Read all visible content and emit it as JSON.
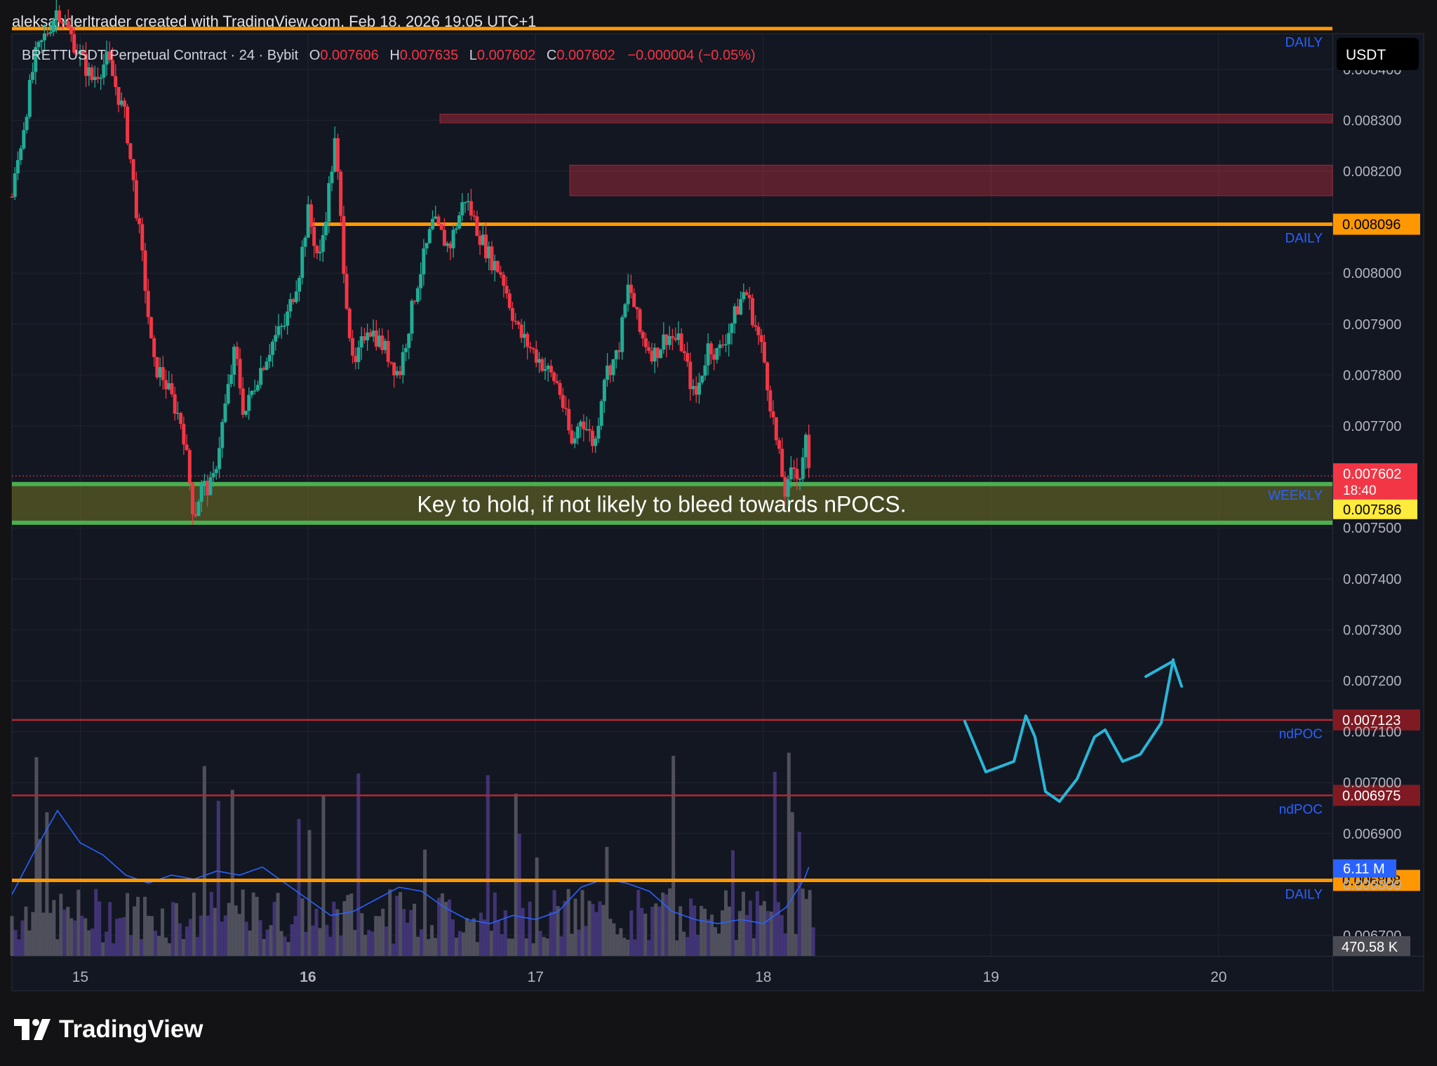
{
  "header": {
    "credit": "aleksanderltrader created with TradingView.com, Feb 18, 2026 19:05 UTC+1"
  },
  "branding": {
    "logo_text": "TradingView"
  },
  "currency_button": {
    "label": "USDT"
  },
  "legend": {
    "symbol": "BRETTUSDT Perpetual Contract · 24 · Bybit",
    "o_label": "O",
    "o_value": "0.007606",
    "h_label": "H",
    "h_value": "0.007635",
    "l_label": "L",
    "l_value": "0.007602",
    "c_label": "C",
    "c_value": "0.007602",
    "change": "−0.000004 (−0.05%)"
  },
  "chart_data": {
    "type": "candlestick",
    "x_ticks": [
      "15",
      "16",
      "17",
      "18",
      "19",
      "20"
    ],
    "x_tick_positions": [
      14.5,
      15.5,
      16.5,
      17.5,
      18.5,
      19.5
    ],
    "x_domain": [
      14.2,
      20.0
    ],
    "y_ticks": [
      "0.008400",
      "0.008300",
      "0.008200",
      "0.008000",
      "0.007900",
      "0.007800",
      "0.007700",
      "0.007500",
      "0.007400",
      "0.007300",
      "0.007200",
      "0.007100",
      "0.007000",
      "0.006900",
      "0.006800",
      "0.006700"
    ],
    "y_range": [
      0.00666,
      0.00847
    ],
    "colors": {
      "up": "#22ab94",
      "down": "#f23645",
      "grid": "#22252e",
      "background": "#131722"
    },
    "price_path": [
      [
        14.2,
        0.00815
      ],
      [
        14.3,
        0.00842
      ],
      [
        14.4,
        0.00852
      ],
      [
        14.55,
        0.00838
      ],
      [
        14.62,
        0.00842
      ],
      [
        14.7,
        0.0083
      ],
      [
        14.78,
        0.008
      ],
      [
        14.82,
        0.00782
      ],
      [
        14.86,
        0.0078
      ],
      [
        14.95,
        0.0077
      ],
      [
        15.0,
        0.00752
      ],
      [
        15.03,
        0.00758
      ],
      [
        15.08,
        0.00758
      ],
      [
        15.13,
        0.00772
      ],
      [
        15.18,
        0.00785
      ],
      [
        15.22,
        0.00772
      ],
      [
        15.28,
        0.0078
      ],
      [
        15.35,
        0.00787
      ],
      [
        15.4,
        0.0079
      ],
      [
        15.46,
        0.008
      ],
      [
        15.5,
        0.00812
      ],
      [
        15.55,
        0.00802
      ],
      [
        15.62,
        0.00826
      ],
      [
        15.66,
        0.008
      ],
      [
        15.7,
        0.0078
      ],
      [
        15.76,
        0.0079
      ],
      [
        15.84,
        0.00785
      ],
      [
        15.9,
        0.0078
      ],
      [
        15.98,
        0.00798
      ],
      [
        16.05,
        0.0081
      ],
      [
        16.12,
        0.00805
      ],
      [
        16.19,
        0.00815
      ],
      [
        16.25,
        0.00808
      ],
      [
        16.3,
        0.00803
      ],
      [
        16.35,
        0.008
      ],
      [
        16.4,
        0.00792
      ],
      [
        16.43,
        0.00788
      ],
      [
        16.5,
        0.00784
      ],
      [
        16.6,
        0.00778
      ],
      [
        16.66,
        0.00766
      ],
      [
        16.7,
        0.00772
      ],
      [
        16.76,
        0.00766
      ],
      [
        16.8,
        0.0078
      ],
      [
        16.86,
        0.00784
      ],
      [
        16.91,
        0.00798
      ],
      [
        16.96,
        0.00788
      ],
      [
        17.02,
        0.00784
      ],
      [
        17.08,
        0.00788
      ],
      [
        17.14,
        0.00786
      ],
      [
        17.2,
        0.00775
      ],
      [
        17.26,
        0.00786
      ],
      [
        17.3,
        0.00784
      ],
      [
        17.36,
        0.0079
      ],
      [
        17.42,
        0.00797
      ],
      [
        17.5,
        0.00784
      ],
      [
        17.56,
        0.00766
      ],
      [
        17.6,
        0.00756
      ],
      [
        17.63,
        0.00762
      ],
      [
        17.67,
        0.0076
      ],
      [
        17.68,
        0.00771
      ],
      [
        17.7,
        0.0076
      ]
    ],
    "volume": {
      "last_label": "6.11 M",
      "secondary_label": "470.58 K",
      "ma_path": [
        [
          14.2,
          0.76
        ],
        [
          14.3,
          1.3
        ],
        [
          14.4,
          1.8
        ],
        [
          14.5,
          1.4
        ],
        [
          14.6,
          1.25
        ],
        [
          14.7,
          1.0
        ],
        [
          14.8,
          0.9
        ],
        [
          14.9,
          1.0
        ],
        [
          15.0,
          0.95
        ],
        [
          15.1,
          1.05
        ],
        [
          15.2,
          1.0
        ],
        [
          15.3,
          1.1
        ],
        [
          15.4,
          0.9
        ],
        [
          15.5,
          0.7
        ],
        [
          15.6,
          0.5
        ],
        [
          15.7,
          0.55
        ],
        [
          15.8,
          0.7
        ],
        [
          15.9,
          0.85
        ],
        [
          16.0,
          0.8
        ],
        [
          16.1,
          0.6
        ],
        [
          16.2,
          0.45
        ],
        [
          16.3,
          0.4
        ],
        [
          16.4,
          0.5
        ],
        [
          16.5,
          0.45
        ],
        [
          16.6,
          0.55
        ],
        [
          16.7,
          0.85
        ],
        [
          16.8,
          0.95
        ],
        [
          16.9,
          0.9
        ],
        [
          17.0,
          0.8
        ],
        [
          17.1,
          0.55
        ],
        [
          17.2,
          0.45
        ],
        [
          17.3,
          0.4
        ],
        [
          17.4,
          0.45
        ],
        [
          17.5,
          0.4
        ],
        [
          17.6,
          0.6
        ],
        [
          17.68,
          0.95
        ],
        [
          17.7,
          1.1
        ]
      ]
    }
  },
  "levels": [
    {
      "price": 0.008096,
      "label": "DAILY",
      "badge": "0.008096",
      "color": "#ff9800",
      "x_start": 15.52
    },
    {
      "price": 0.00848,
      "label": "DAILY",
      "badge": "",
      "color": "#ff9800",
      "x_start": 14.2
    },
    {
      "price": 0.006808,
      "label": "DAILY",
      "badge": "0.006808",
      "color": "#ff9800",
      "x_start": 14.2
    },
    {
      "price": 0.007123,
      "label": "ndPOC",
      "badge": "0.007123",
      "color": "#b22833",
      "x_start": 14.2
    },
    {
      "price": 0.006975,
      "label": "ndPOC",
      "badge": "0.006975",
      "color": "#b22833",
      "x_start": 14.2
    }
  ],
  "zones": [
    {
      "top": 0.008312,
      "bottom": 0.008295,
      "x_start": 16.08
    },
    {
      "top": 0.008212,
      "bottom": 0.008152,
      "x_start": 16.65
    }
  ],
  "weekly_zone": {
    "top": 0.007586,
    "bottom": 0.00751,
    "label": "WEEKLY",
    "note": "Key to hold, if not likely to bleed towards nPOCS."
  },
  "price_badges": {
    "current_price": "0.007602",
    "countdown": "18:40",
    "weekly_price": "0.007586"
  }
}
